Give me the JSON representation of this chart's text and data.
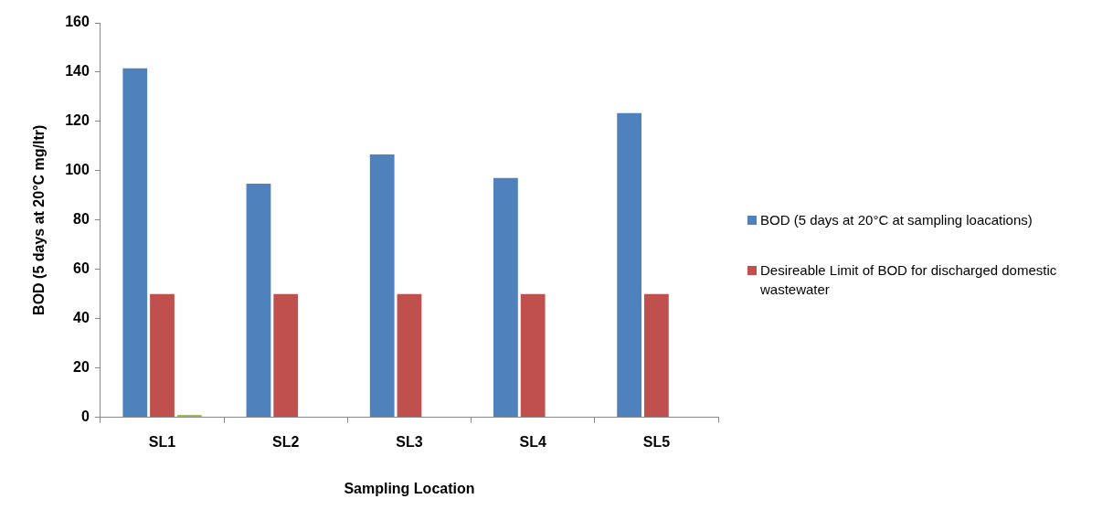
{
  "chart_data": {
    "type": "bar",
    "xlabel": "Sampling Location",
    "ylabel": "BOD (5 days at 20°C mg/ltr)",
    "categories": [
      "SL1",
      "SL2",
      "SL3",
      "SL4",
      "SL5"
    ],
    "series": [
      {
        "name": "BOD (5 days at 20°C at sampling loacations)",
        "color": "#4f81bd",
        "values": [
          141.6,
          94.8,
          106.6,
          97.1,
          123.4
        ]
      },
      {
        "name": "Desireable Limit of BOD for discharged domestic wastewater",
        "color": "#c0504d",
        "values": [
          50,
          50,
          50,
          50,
          50
        ]
      },
      {
        "color": "#9bbb59",
        "values": [
          1,
          null,
          null,
          null,
          null
        ]
      }
    ],
    "ylim": [
      0,
      160
    ],
    "yticks": [
      0,
      20,
      40,
      60,
      80,
      100,
      120,
      140,
      160
    ],
    "grid": false,
    "legend": "right"
  }
}
